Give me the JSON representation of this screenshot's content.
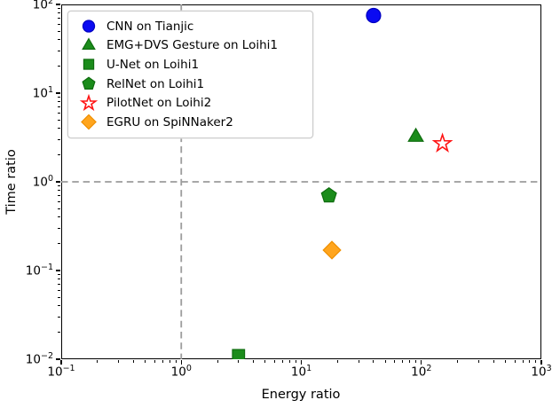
{
  "chart_data": {
    "type": "scatter",
    "title": "",
    "xlabel": "Energy ratio",
    "ylabel": "Time ratio",
    "xscale": "log",
    "yscale": "log",
    "xlim": [
      0.1,
      1000
    ],
    "ylim": [
      0.01,
      100
    ],
    "grid": false,
    "legend_position": "upper left",
    "x_axis": {
      "label": "Energy ratio",
      "tick_labels": [
        "10^-1",
        "10^0",
        "10^1",
        "10^2",
        "10^3"
      ]
    },
    "y_axis": {
      "label": "Time ratio",
      "tick_labels": [
        "10^-2",
        "10^-1",
        "10^0",
        "10^1",
        "10^2"
      ]
    },
    "reference_lines": {
      "vertical_x": 1,
      "horizontal_y": 1,
      "style": "dashed",
      "color": "#9c9c9c"
    },
    "series": [
      {
        "label": "CNN on Tianjic",
        "marker": "circle-icon",
        "color": "#0a0af2",
        "edge_color": "#0000c0",
        "x": 40,
        "y": 75
      },
      {
        "label": "EMG+DVS Gesture on Loihi1",
        "marker": "triangle-icon",
        "color": "#1b8c1b",
        "edge_color": "#0e6c0e",
        "x": 90,
        "y": 3.2
      },
      {
        "label": "U-Net on Loihi1",
        "marker": "square-icon",
        "color": "#1b8c1b",
        "edge_color": "#0e6c0e",
        "x": 3,
        "y": 0.011
      },
      {
        "label": "RelNet on Loihi1",
        "marker": "pentagon-icon",
        "color": "#1b8c1b",
        "edge_color": "#0e6c0e",
        "x": 17,
        "y": 0.7
      },
      {
        "label": "PilotNet on Loihi2",
        "marker": "star-open-icon",
        "color": "#ffffff",
        "edge_color": "#ff1414",
        "x": 150,
        "y": 2.7
      },
      {
        "label": "EGRU on SpiNNaker2",
        "marker": "diamond-icon",
        "color": "#ffa51e",
        "edge_color": "#ef8f00",
        "x": 18,
        "y": 0.17
      }
    ]
  }
}
